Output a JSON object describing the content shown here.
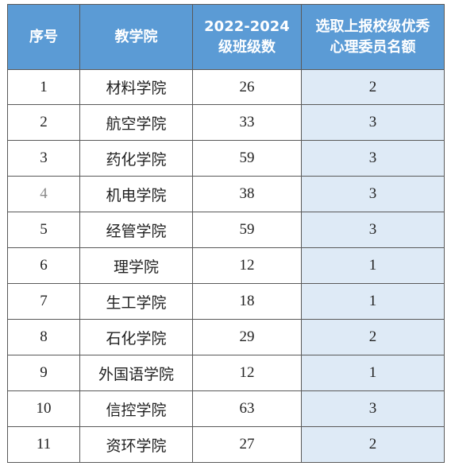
{
  "table": {
    "headers": {
      "index": "序号",
      "college": "教学院",
      "classes_line1": "2022-2024",
      "classes_line2": "级班级数",
      "quota_line1": "选取上报校级优秀",
      "quota_line2": "心理委员名额"
    },
    "rows": [
      {
        "index": "1",
        "college": "材料学院",
        "classes": "26",
        "quota": "2"
      },
      {
        "index": "2",
        "college": "航空学院",
        "classes": "33",
        "quota": "3"
      },
      {
        "index": "3",
        "college": "药化学院",
        "classes": "59",
        "quota": "3"
      },
      {
        "index": "4",
        "college": "机电学院",
        "classes": "38",
        "quota": "3"
      },
      {
        "index": "5",
        "college": "经管学院",
        "classes": "59",
        "quota": "3"
      },
      {
        "index": "6",
        "college": "理学院",
        "classes": "12",
        "quota": "1"
      },
      {
        "index": "7",
        "college": "生工学院",
        "classes": "18",
        "quota": "1"
      },
      {
        "index": "8",
        "college": "石化学院",
        "classes": "29",
        "quota": "2"
      },
      {
        "index": "9",
        "college": "外国语学院",
        "classes": "12",
        "quota": "1"
      },
      {
        "index": "10",
        "college": "信控学院",
        "classes": "63",
        "quota": "3"
      },
      {
        "index": "11",
        "college": "资环学院",
        "classes": "27",
        "quota": "2"
      }
    ]
  },
  "colors": {
    "header_background": "#5b9bd5",
    "header_text": "#ffffff",
    "quota_column_background": "#deeaf6",
    "border": "#595959"
  }
}
